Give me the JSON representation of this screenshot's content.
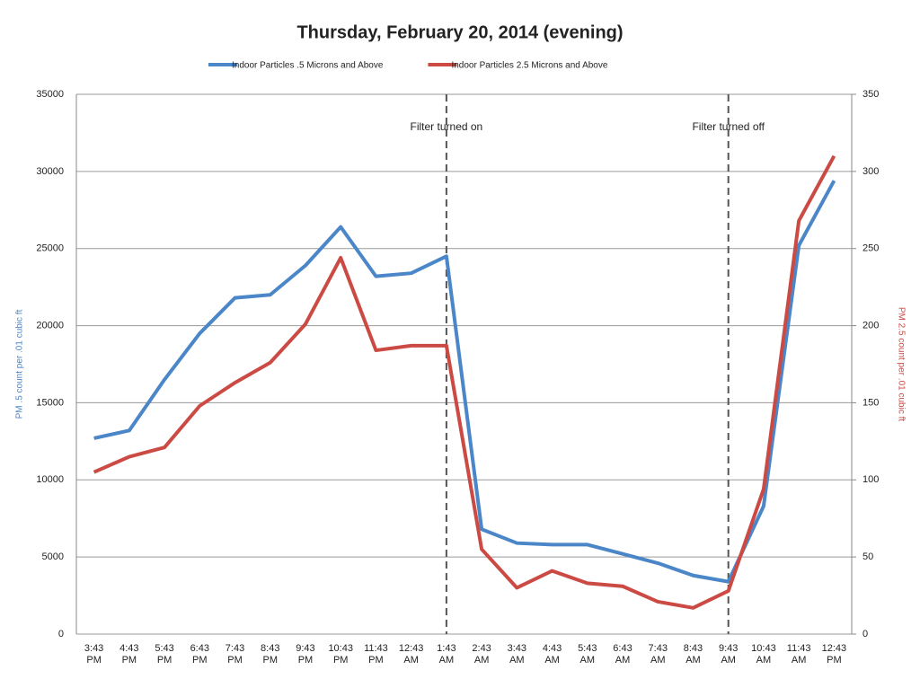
{
  "chart_data": {
    "type": "line",
    "title": "Thursday, February 20, 2014 (evening)",
    "y_label": "PM .5 count per .01 cubic ft",
    "y2_label": "PM 2.5 count per .01 cubic ft",
    "categories": [
      "3:43 PM",
      "4:43 PM",
      "5:43 PM",
      "6:43 PM",
      "7:43 PM",
      "8:43 PM",
      "9:43 PM",
      "10:43 PM",
      "11:43 PM",
      "12:43 AM",
      "1:43 AM",
      "2:43 AM",
      "3:43 AM",
      "4:43 AM",
      "5:43 AM",
      "6:43 AM",
      "7:43 AM",
      "8:43 AM",
      "9:43 AM",
      "10:43 AM",
      "11:43 AM",
      "12:43 PM"
    ],
    "series": [
      {
        "name": "Indoor Particles .5 Microns and Above",
        "color": "#4a86c8",
        "values": [
          12700,
          13200,
          16500,
          19500,
          21800,
          22000,
          23900,
          26400,
          23200,
          23400,
          24500,
          6800,
          5900,
          5800,
          5800,
          5200,
          4600,
          3800,
          3400,
          8300,
          25200,
          29400
        ]
      },
      {
        "name": "Indoor Particles 2.5 Microns and Above",
        "color": "#cc4a44",
        "axis": "y2",
        "values": [
          105,
          115,
          121,
          148,
          163,
          176,
          201,
          244,
          184,
          187,
          187,
          55,
          30,
          41,
          33,
          31,
          21,
          17,
          28,
          94,
          268,
          310
        ]
      }
    ],
    "ylim": [
      0,
      35000
    ],
    "yticks": [
      0,
      5000,
      10000,
      15000,
      20000,
      25000,
      30000,
      35000
    ],
    "y2lim": [
      0,
      350
    ],
    "y2ticks": [
      0,
      50,
      100,
      150,
      200,
      250,
      300,
      350
    ],
    "grid": true,
    "legend": "top",
    "annotations": [
      {
        "text": "Filter turned on",
        "at": "1:43 AM"
      },
      {
        "text": "Filter turned off",
        "at": "9:43 AM"
      }
    ]
  }
}
